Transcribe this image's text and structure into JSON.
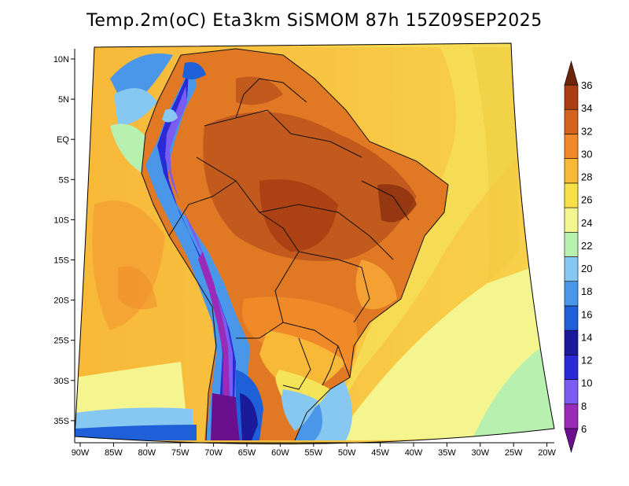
{
  "title": "Temp.2m(oC) Eta3km SiSMOM 87h 15Z09SEP2025",
  "lat_labels": [
    "10N",
    "5N",
    "EQ",
    "5S",
    "10S",
    "15S",
    "20S",
    "25S",
    "30S",
    "35S"
  ],
  "lon_labels": [
    "90W",
    "85W",
    "80W",
    "75W",
    "70W",
    "65W",
    "60W",
    "55W",
    "50W",
    "45W",
    "40W",
    "35W",
    "30W",
    "25W",
    "20W"
  ],
  "colorbar": {
    "labels": [
      "6",
      "8",
      "10",
      "12",
      "14",
      "16",
      "18",
      "20",
      "22",
      "24",
      "26",
      "28",
      "30",
      "32",
      "34",
      "36"
    ],
    "colors": [
      "#6a0f8e",
      "#9a2ab8",
      "#7a5cf0",
      "#2a2ad6",
      "#1a1a9a",
      "#1f5fd8",
      "#4a96e8",
      "#86c8f2",
      "#b8f0b0",
      "#f5f590",
      "#f8e04a",
      "#f8b838",
      "#f08a28",
      "#d2621c",
      "#a83e12",
      "#6e240a"
    ]
  }
}
